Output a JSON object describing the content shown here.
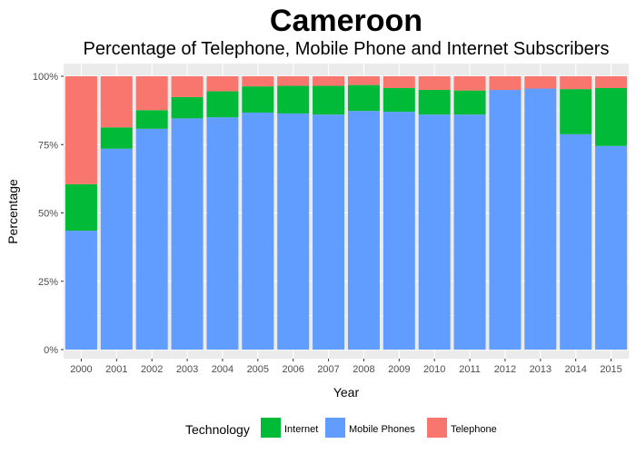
{
  "chart_data": {
    "type": "bar",
    "stacked": true,
    "title": "Cameroon",
    "subtitle": "Percentage of Telephone, Mobile Phone and Internet Subscribers",
    "xlabel": "Year",
    "ylabel": "Percentage",
    "ylim": [
      0,
      100
    ],
    "yticks": [
      "0%",
      "25%",
      "50%",
      "75%",
      "100%"
    ],
    "grid": true,
    "legend_position": "bottom",
    "legend_title": "Technology",
    "categories": [
      "2000",
      "2001",
      "2002",
      "2003",
      "2004",
      "2005",
      "2006",
      "2007",
      "2008",
      "2009",
      "2010",
      "2011",
      "2012",
      "2013",
      "2014",
      "2015"
    ],
    "series": [
      {
        "name": "Mobile Phones",
        "color": "#619CFF",
        "values": [
          43.5,
          73.5,
          80.8,
          84.6,
          85.0,
          86.7,
          86.4,
          86.0,
          87.3,
          87.0,
          86.0,
          86.0,
          95.0,
          95.5,
          78.8,
          74.5
        ]
      },
      {
        "name": "Internet",
        "color": "#00BA38",
        "values": [
          17.0,
          7.8,
          6.8,
          7.8,
          9.5,
          9.6,
          10.1,
          10.5,
          9.5,
          8.7,
          9.0,
          8.8,
          0.0,
          0.0,
          16.5,
          21.2
        ]
      },
      {
        "name": "Telephone",
        "color": "#F8766D",
        "values": [
          39.5,
          18.7,
          12.4,
          7.6,
          5.5,
          3.7,
          3.5,
          3.5,
          3.2,
          4.3,
          5.0,
          5.2,
          5.0,
          4.5,
          4.7,
          4.3
        ]
      }
    ],
    "legend_order": [
      "Internet",
      "Mobile Phones",
      "Telephone"
    ]
  }
}
